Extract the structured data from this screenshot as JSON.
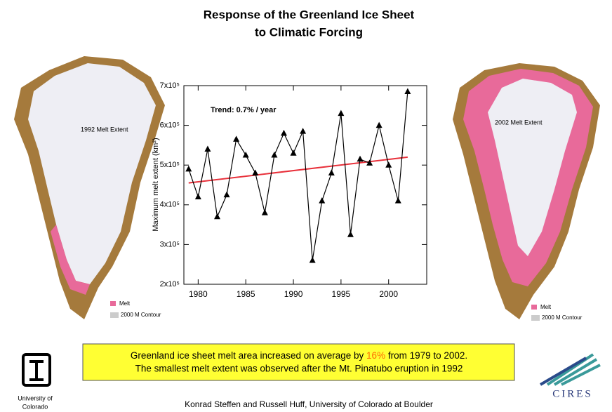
{
  "chart_data": {
    "type": "line",
    "title": [
      "Response of the Greenland Ice Sheet",
      "to Climatic Forcing"
    ],
    "y_label": "Maximum melt extent (km²)",
    "annotation": "Trend: 0.7% / year",
    "x": [
      1979,
      1980,
      1981,
      1982,
      1983,
      1984,
      1985,
      1986,
      1987,
      1988,
      1989,
      1990,
      1991,
      1992,
      1993,
      1994,
      1995,
      1996,
      1997,
      1998,
      1999,
      2000,
      2001,
      2002
    ],
    "values": [
      490000,
      420000,
      540000,
      370000,
      425000,
      565000,
      525000,
      480000,
      380000,
      525000,
      580000,
      530000,
      585000,
      260000,
      410000,
      480000,
      630000,
      325000,
      515000,
      505000,
      600000,
      500000,
      410000,
      685000
    ],
    "color": "#000000",
    "trend_line": {
      "x": [
        1979,
        2002
      ],
      "values": [
        455000,
        520000
      ],
      "color": "#e8303a"
    },
    "xlim": [
      1978.5,
      2004
    ],
    "xticks": [
      1980,
      1985,
      1990,
      1995,
      2000
    ],
    "ylim": [
      200000,
      700000
    ],
    "yticks": [
      {
        "value": 200000,
        "label": "2x10⁵"
      },
      {
        "value": 300000,
        "label": "3x10⁵"
      },
      {
        "value": 400000,
        "label": "4x10⁵"
      },
      {
        "value": 500000,
        "label": "5x10⁵"
      },
      {
        "value": 600000,
        "label": "6x10⁵"
      },
      {
        "value": 700000,
        "label": "7x10⁵"
      }
    ]
  },
  "maps": {
    "left": {
      "label": "1992 Melt Extent",
      "legend": [
        "Melt",
        "2000 M Contour"
      ]
    },
    "right": {
      "label": "2002 Melt Extent",
      "legend": [
        "Melt",
        "2000 M Contour"
      ]
    }
  },
  "callout": {
    "line1_before": "Greenland ice sheet melt area increased on average by ",
    "highlight": "16%",
    "line1_after": " from 1979 to 2002.",
    "line2": "The smallest melt extent was observed after the Mt. Pinatubo eruption in 1992"
  },
  "logos": {
    "cu": [
      "University of",
      "Colorado"
    ],
    "cires": "CIRES"
  },
  "credit": "Konrad Steffen and Russell Huff, University of Colorado at Boulder"
}
